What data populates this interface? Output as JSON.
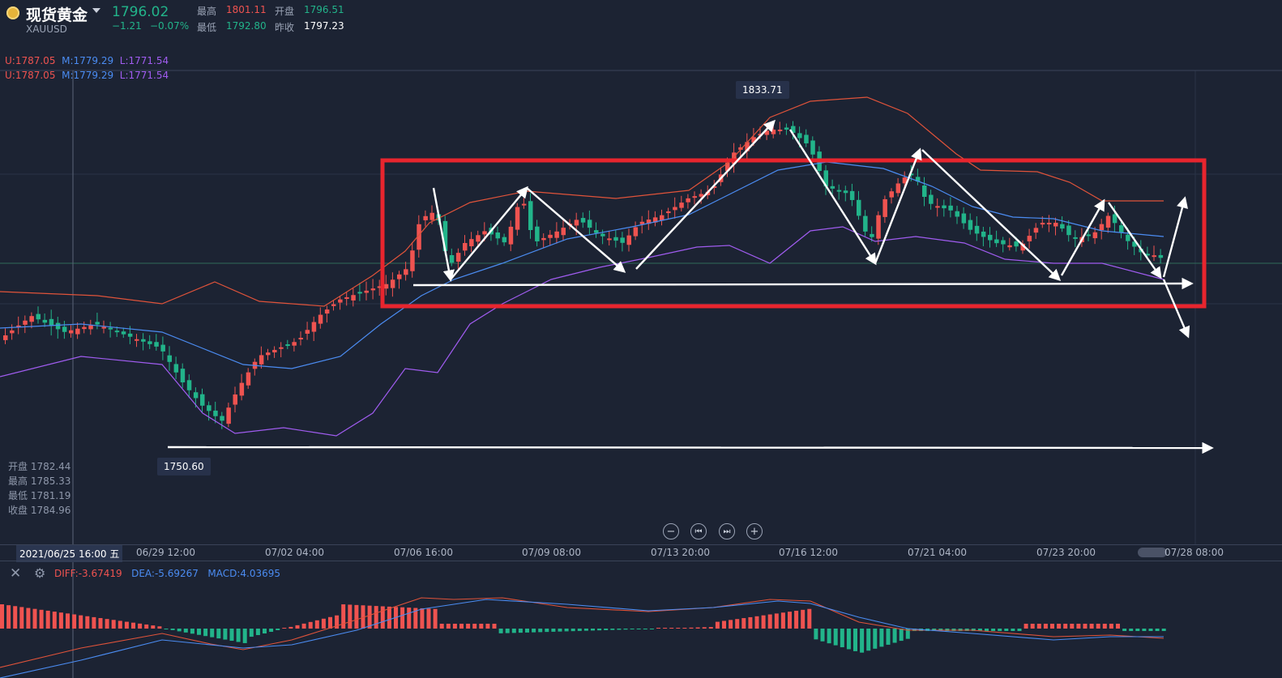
{
  "header": {
    "instrument": "现货黄金",
    "code": "XAUUSD",
    "price": "1796.02",
    "change": "−1.21",
    "change_pct": "−0.07%",
    "high_label": "最高",
    "high": "1801.11",
    "low_label": "最低",
    "low": "1792.80",
    "open_label": "开盘",
    "open": "1796.51",
    "prev_close_label": "昨收",
    "prev_close": "1797.23"
  },
  "boll": {
    "u": "U:1787.05",
    "m": "M:1779.29",
    "l": "L:1771.54"
  },
  "markers": {
    "peak": "1833.71",
    "trough": "1750.60"
  },
  "ohlc_panel": {
    "open": "开盘 1782.44",
    "high": "最高 1785.33",
    "low": "最低 1781.19",
    "close": "收盘 1784.96"
  },
  "time_axis": {
    "first": "2021/06/25 16:00 五",
    "labels": [
      "06/29 12:00",
      "07/02 04:00",
      "07/06 16:00",
      "07/09 08:00",
      "07/13 20:00",
      "07/16 12:00",
      "07/21 04:00",
      "07/23 20:00",
      "07/28 08:00"
    ]
  },
  "controls": {
    "zoom_out": "−",
    "step_back": "⏮",
    "step_forward": "⏭",
    "zoom_in": "+"
  },
  "macd": {
    "diff": "DIFF:-3.67419",
    "dea": "DEA:-5.69267",
    "macd": "MACD:4.03695"
  },
  "colors": {
    "background": "#1c2333",
    "up": "#ef5350",
    "down": "#22b48a",
    "upper_band": "#e0533a",
    "mid_band": "#4b8cf2",
    "lower_band": "#a05cf0",
    "highlight_box": "#e8252e"
  }
}
